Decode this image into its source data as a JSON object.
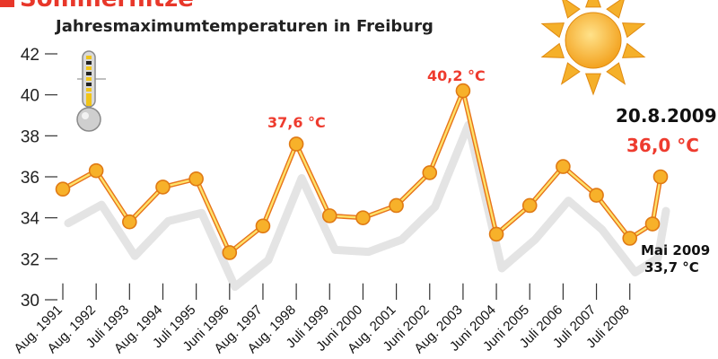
{
  "header": {
    "title": "Sommerhitze",
    "subtitle": "Jahresmaximumtemperaturen in Freiburg"
  },
  "icons": {
    "thermometer": "thermometer-icon",
    "sun": "sun-icon"
  },
  "colors": {
    "accent": "#e8372a",
    "line": "#f4a91a",
    "marker": "#f7b12a",
    "shadow": "#e4e4e4",
    "axis": "#333333"
  },
  "annotations": {
    "peak_1998": "37,6 °C",
    "peak_2003": "40,2 °C",
    "last_date": "20.8.2009",
    "last_value": "36,0 °C",
    "may_label": "Mai 2009",
    "may_value": "33,7 °C"
  },
  "chart_data": {
    "type": "line",
    "title": "Jahresmaximumtemperaturen in Freiburg",
    "ylim": [
      30,
      42
    ],
    "yticks": [
      30,
      32,
      34,
      36,
      38,
      40,
      42
    ],
    "grid": false,
    "categories": [
      "Aug. 1991",
      "Aug. 1992",
      "Juli 1993",
      "Aug. 1994",
      "Juli 1995",
      "Juni 1996",
      "Aug. 1997",
      "Aug. 1998",
      "Juli 1999",
      "Juni 2000",
      "Aug. 2001",
      "Juni 2002",
      "Aug. 2003",
      "Juni 2004",
      "Juni 2005",
      "Juli 2006",
      "Juli 2007",
      "Juli 2008",
      "Mai 2009",
      "20.8.2009"
    ],
    "values": [
      35.4,
      36.3,
      33.8,
      35.5,
      35.9,
      32.3,
      33.6,
      37.6,
      34.1,
      34.0,
      34.6,
      36.2,
      40.2,
      33.2,
      34.6,
      36.5,
      35.1,
      33.0,
      33.7,
      36.0
    ],
    "tick_labels": [
      "Aug. 1991",
      "Aug. 1992",
      "Juli 1993",
      "Aug. 1994",
      "Juli 1995",
      "Juni 1996",
      "Aug. 1997",
      "Aug. 1998",
      "Juli 1999",
      "Juni 2000",
      "Aug. 2001",
      "Juni 2002",
      "Aug. 2003",
      "Juni 2004",
      "Juni 2005",
      "Juli 2006",
      "Juli 2007",
      "Juli 2008"
    ]
  }
}
